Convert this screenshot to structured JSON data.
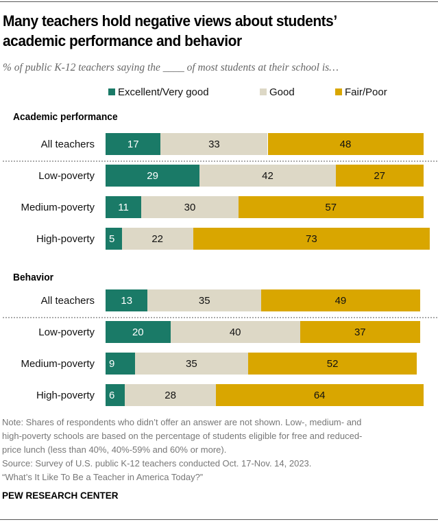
{
  "header": {
    "title_line1": "Many teachers hold negative views about students’",
    "title_line2": "academic performance and behavior",
    "subtitle": "% of public K-12 teachers saying the ____ of most students at their school is…"
  },
  "colors": {
    "excellent": "#1a7a67",
    "good": "#ddd8c6",
    "fair": "#d9a600",
    "excellent_text": "#ffffff",
    "good_text": "#111111",
    "fair_text": "#111111"
  },
  "chart_data": {
    "type": "bar",
    "orientation": "horizontal",
    "stacked": true,
    "title": "Many teachers hold negative views about students’ academic performance and behavior",
    "subtitle": "% of public K-12 teachers saying the ____ of most students at their school is…",
    "legend": {
      "placement": "top",
      "entries": [
        "Excellent/Very good",
        "Good",
        "Fair/Poor"
      ]
    },
    "xlim": [
      0,
      100
    ],
    "groups": [
      {
        "name": "Academic performance",
        "categories": [
          "All teachers",
          "Low-poverty",
          "Medium-poverty",
          "High-poverty"
        ],
        "series": [
          {
            "name": "Excellent/Very good",
            "values": [
              17,
              29,
              11,
              5
            ]
          },
          {
            "name": "Good",
            "values": [
              33,
              42,
              30,
              22
            ]
          },
          {
            "name": "Fair/Poor",
            "values": [
              48,
              27,
              57,
              73
            ]
          }
        ]
      },
      {
        "name": "Behavior",
        "categories": [
          "All teachers",
          "Low-poverty",
          "Medium-poverty",
          "High-poverty"
        ],
        "series": [
          {
            "name": "Excellent/Very good",
            "values": [
              13,
              20,
              9,
              6
            ]
          },
          {
            "name": "Good",
            "values": [
              35,
              40,
              35,
              28
            ]
          },
          {
            "name": "Fair/Poor",
            "values": [
              49,
              37,
              52,
              64
            ]
          }
        ]
      }
    ]
  },
  "footer": {
    "note_lines": [
      "Note: Shares of respondents who didn’t offer an answer are not shown. Low-, medium- and",
      "high-poverty schools are based on the percentage of students eligible for free and reduced-",
      "price lunch (less than 40%, 40%-59% and 60% or more)."
    ],
    "source_lines": [
      "Source: Survey of U.S. public K-12 teachers conducted Oct. 17-Nov. 14, 2023.",
      "“What’s It Like To Be a Teacher in America Today?”"
    ],
    "brand": "PEW RESEARCH CENTER"
  }
}
